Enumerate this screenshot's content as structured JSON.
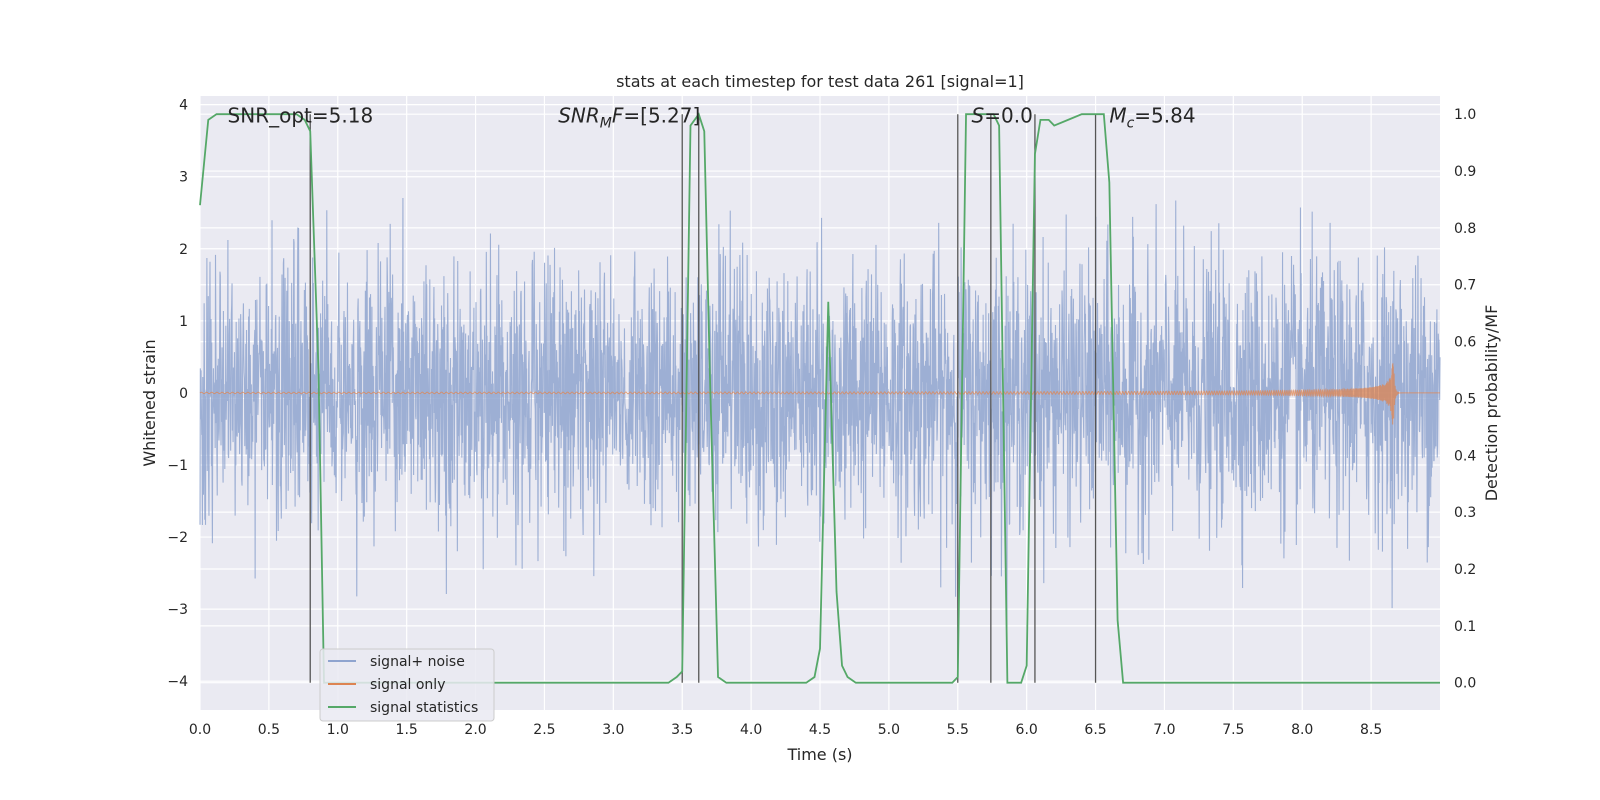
{
  "chart_data": {
    "type": "line",
    "title": "stats at each timestep for test data 261 [signal=1]",
    "xlabel": "Time (s)",
    "ylabel_left": "Whitened strain",
    "ylabel_right": "Detection probability/MF",
    "xlim": [
      0,
      9.0
    ],
    "ylim_left": [
      -4.4,
      4.12
    ],
    "ylim_right": [
      -0.048,
      1.032
    ],
    "x_ticks": [
      0.0,
      0.5,
      1.0,
      1.5,
      2.0,
      2.5,
      3.0,
      3.5,
      4.0,
      4.5,
      5.0,
      5.5,
      6.0,
      6.5,
      7.0,
      7.5,
      8.0,
      8.5
    ],
    "x_tick_labels": [
      "0.0",
      "0.5",
      "1.0",
      "1.5",
      "2.0",
      "2.5",
      "3.0",
      "3.5",
      "4.0",
      "4.5",
      "5.0",
      "5.5",
      "6.0",
      "6.5",
      "7.0",
      "7.5",
      "8.0",
      "8.5"
    ],
    "y_left_ticks": [
      4,
      3,
      2,
      1,
      0,
      -1,
      -2,
      -3,
      -4
    ],
    "y_left_tick_labels": [
      "4",
      "3",
      "2",
      "1",
      "0",
      "−1",
      "−2",
      "−3",
      "−4"
    ],
    "y_right_ticks": [
      1.0,
      0.9,
      0.8,
      0.7,
      0.6,
      0.5,
      0.4,
      0.3,
      0.2,
      0.1,
      0.0
    ],
    "y_right_tick_labels": [
      "1.0",
      "0.9",
      "0.8",
      "0.7",
      "0.6",
      "0.5",
      "0.4",
      "0.3",
      "0.2",
      "0.1",
      "0.0"
    ],
    "grid": true,
    "legend_position": "lower-left",
    "annotations": [
      {
        "text": "SNR_opt=5.18",
        "x": 0.2,
        "y": 3.85
      },
      {
        "text": "SNR_MF=[5.27]",
        "x": 2.6,
        "y": 3.85,
        "math": "SNRMF"
      },
      {
        "text": "S=0.0",
        "x": 5.6,
        "y": 3.85,
        "math": "S"
      },
      {
        "text": "M_c=5.84",
        "x": 6.6,
        "y": 3.85,
        "math": "Mc"
      }
    ],
    "series": [
      {
        "name": "signal+ noise",
        "color": "#8fa4cf",
        "axis": "left",
        "description_kind": "noise",
        "sigma": 0.9,
        "duration": 9.0
      },
      {
        "name": "signal only",
        "color": "#dd8452",
        "axis": "left",
        "kind": "chirp",
        "merger_time": 8.66,
        "peak_amplitude": 0.62
      },
      {
        "name": "signal statistics",
        "color": "#55a868",
        "axis": "right",
        "x": [
          0.0,
          0.06,
          0.12,
          0.2,
          0.3,
          0.4,
          0.5,
          0.6,
          0.7,
          0.76,
          0.8,
          0.86,
          0.9,
          1.0,
          1.5,
          2.0,
          2.5,
          3.0,
          3.4,
          3.46,
          3.5,
          3.56,
          3.62,
          3.66,
          3.7,
          3.76,
          3.82,
          4.0,
          4.4,
          4.46,
          4.5,
          4.56,
          4.62,
          4.66,
          4.7,
          4.76,
          5.0,
          5.2,
          5.3,
          5.46,
          5.5,
          5.56,
          5.6,
          5.7,
          5.76,
          5.8,
          5.86,
          5.9,
          5.96,
          6.0,
          6.06,
          6.1,
          6.16,
          6.2,
          6.3,
          6.4,
          6.5,
          6.56,
          6.6,
          6.66,
          6.7,
          7.0,
          7.5,
          8.0,
          8.1,
          8.2,
          8.5,
          9.0
        ],
        "y": [
          0.84,
          0.99,
          1.0,
          1.0,
          1.0,
          1.0,
          1.0,
          1.0,
          1.0,
          0.99,
          0.97,
          0.55,
          0.0,
          0.0,
          0.0,
          0.0,
          0.0,
          0.0,
          0.0,
          0.01,
          0.02,
          0.98,
          1.0,
          0.97,
          0.55,
          0.01,
          0.0,
          0.0,
          0.0,
          0.01,
          0.06,
          0.67,
          0.16,
          0.03,
          0.01,
          0.0,
          0.0,
          0.0,
          0.0,
          0.0,
          0.01,
          1.0,
          1.0,
          1.0,
          1.0,
          0.98,
          0.0,
          0.0,
          0.0,
          0.03,
          0.93,
          0.99,
          0.99,
          0.98,
          0.99,
          1.0,
          1.0,
          1.0,
          0.88,
          0.11,
          0.0,
          0.0,
          0.0,
          0.0,
          0.0,
          0.0,
          0.0,
          0.0
        ]
      }
    ],
    "vertical_lines": [
      0.8,
      3.5,
      3.62,
      5.5,
      5.74,
      6.06,
      6.5
    ],
    "vertical_lines_color": "#555555",
    "background_color": "#eaeaf2"
  }
}
